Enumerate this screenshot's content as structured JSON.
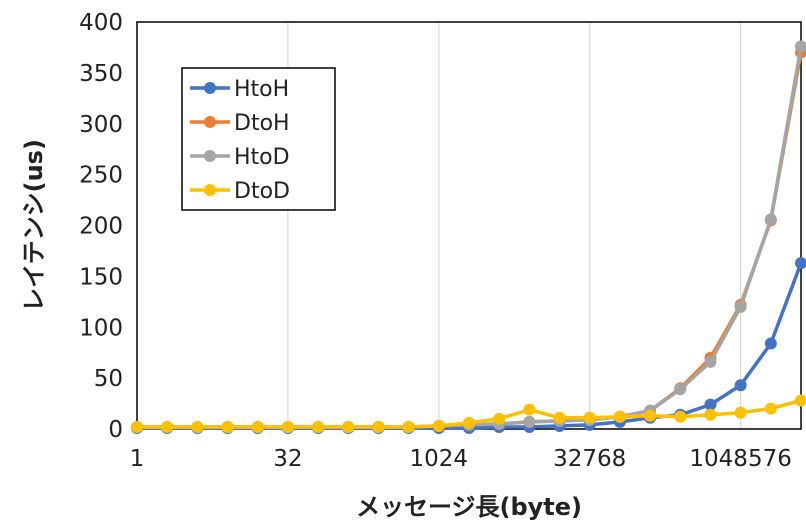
{
  "chart_data": {
    "type": "line",
    "x_scale": "log2",
    "x": [
      1,
      2,
      4,
      8,
      16,
      32,
      64,
      128,
      256,
      512,
      1024,
      2048,
      4096,
      8192,
      16384,
      32768,
      65536,
      131072,
      262144,
      524288,
      1048576,
      2097152,
      4194304
    ],
    "xticks": [
      "1",
      "32",
      "1024",
      "32768",
      "1048576"
    ],
    "xlabel": "メッセージ長(byte)",
    "ylabel": "レイテンシ(us)",
    "ylim": [
      0,
      400
    ],
    "yticks": [
      "0",
      "50",
      "100",
      "150",
      "200",
      "250",
      "300",
      "350",
      "400"
    ],
    "grid": "vertical",
    "legend_position": "top-left",
    "series": [
      {
        "name": "HtoH",
        "color": "#4472C4",
        "values": [
          1,
          1,
          1,
          1,
          1,
          1,
          1,
          1,
          1,
          1,
          1,
          1,
          2,
          2,
          3,
          4,
          7,
          11,
          14,
          24,
          43,
          84,
          163
        ]
      },
      {
        "name": "DtoH",
        "color": "#ED7D31",
        "values": [
          2,
          2,
          2,
          2,
          2,
          2,
          2,
          2,
          2,
          2,
          3,
          4,
          5,
          7,
          8,
          9,
          12,
          18,
          40,
          70,
          122,
          205,
          370
        ]
      },
      {
        "name": "HtoD",
        "color": "#A5A5A5",
        "values": [
          2,
          2,
          2,
          2,
          2,
          2,
          2,
          2,
          2,
          2,
          3,
          4,
          5,
          7,
          8,
          9,
          12,
          18,
          39,
          66,
          120,
          206,
          376
        ]
      },
      {
        "name": "DtoD",
        "color": "#FFC000",
        "values": [
          2,
          2,
          2,
          2,
          2,
          2,
          2,
          2,
          2,
          2,
          3,
          6,
          10,
          19,
          11,
          11,
          12,
          13,
          12,
          14,
          16,
          20,
          28
        ]
      }
    ]
  }
}
